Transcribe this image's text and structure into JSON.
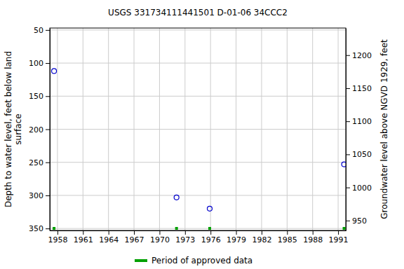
{
  "chart_data": {
    "type": "scatter",
    "title": "USGS 331734111441501 D-01-06 34CCC2",
    "y_label": [
      "Depth to water level, feet below land",
      "surface"
    ],
    "y2_label": "Groundwater level above NGVD 1929, feet",
    "x": [
      1957.6,
      1972.0,
      1975.9,
      1991.7
    ],
    "series": [
      {
        "values": [
          112,
          303,
          320,
          253
        ],
        "color": "#0000cc",
        "marker": "circle-open",
        "axis": "y"
      }
    ],
    "approved": {
      "name": "Period of approved data",
      "color": "#00a000",
      "x": [
        1957.6,
        1972.0,
        1975.9,
        1991.7
      ]
    },
    "xlim": [
      1957.1,
      1991.9
    ],
    "xticks": [
      1958,
      1961,
      1964,
      1967,
      1970,
      1973,
      1976,
      1979,
      1982,
      1985,
      1988,
      1991
    ],
    "ylim": [
      353,
      47
    ],
    "yticks": [
      50,
      100,
      150,
      200,
      250,
      300,
      350
    ],
    "y2lim": [
      935,
      1241
    ],
    "y2ticks": [
      950,
      1000,
      1050,
      1100,
      1150,
      1200
    ],
    "grid": true
  }
}
